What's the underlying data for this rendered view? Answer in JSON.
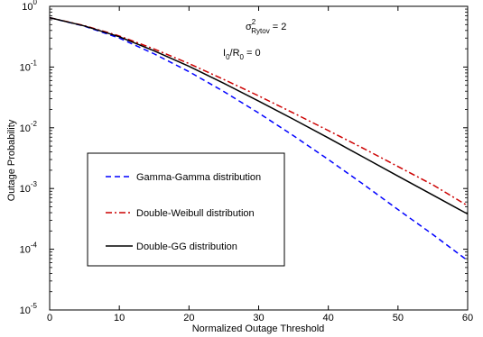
{
  "chart_data": {
    "type": "line",
    "title": "",
    "xlabel": "Normalized Outage Threshold",
    "ylabel": "Outage Probability",
    "xlim": [
      0,
      60
    ],
    "ylim": [
      1e-05,
      1
    ],
    "yscale": "log",
    "grid": false,
    "legend_position": "lower-left",
    "x_ticks": [
      0,
      10,
      20,
      30,
      40,
      50,
      60
    ],
    "y_ticks": [
      {
        "value": 1e-05,
        "base": "10",
        "exp": "-5"
      },
      {
        "value": 0.0001,
        "base": "10",
        "exp": "-4"
      },
      {
        "value": 0.001,
        "base": "10",
        "exp": "-3"
      },
      {
        "value": 0.01,
        "base": "10",
        "exp": "-2"
      },
      {
        "value": 0.1,
        "base": "10",
        "exp": "-1"
      },
      {
        "value": 1,
        "base": "10",
        "exp": "0"
      }
    ],
    "annotations": {
      "sigma": {
        "prefix": "σ",
        "sup": "2",
        "sub": "Rytov",
        "suffix": " = 2"
      },
      "ratio": {
        "a": "I",
        "a_sub": "0",
        "mid": "/R",
        "b_sub": "0",
        "suffix": " = 0"
      }
    },
    "series": [
      {
        "name": "Gamma-Gamma distribution",
        "color": "#0000ff",
        "dash": "dashed",
        "x": [
          0,
          5,
          10,
          15,
          20,
          25,
          30,
          35,
          40,
          45,
          50,
          55,
          60
        ],
        "y": [
          0.65,
          0.47,
          0.3,
          0.165,
          0.084,
          0.0395,
          0.0175,
          0.0074,
          0.003,
          0.00118,
          0.00045,
          0.000175,
          6.5e-05
        ]
      },
      {
        "name": "Double-Weibull distribution",
        "color": "#cc0000",
        "dash": "dashdot",
        "x": [
          0,
          5,
          10,
          15,
          20,
          25,
          30,
          35,
          40,
          45,
          50,
          55,
          60
        ],
        "y": [
          0.65,
          0.48,
          0.325,
          0.198,
          0.114,
          0.0625,
          0.0335,
          0.0175,
          0.009,
          0.0046,
          0.0023,
          0.00115,
          0.00052
        ]
      },
      {
        "name": "Double-GG distribution",
        "color": "#000000",
        "dash": "solid",
        "x": [
          0,
          5,
          10,
          15,
          20,
          25,
          30,
          35,
          40,
          45,
          50,
          55,
          60
        ],
        "y": [
          0.65,
          0.475,
          0.315,
          0.185,
          0.103,
          0.054,
          0.0275,
          0.0138,
          0.0068,
          0.0033,
          0.0016,
          0.00078,
          0.00038
        ]
      }
    ]
  }
}
